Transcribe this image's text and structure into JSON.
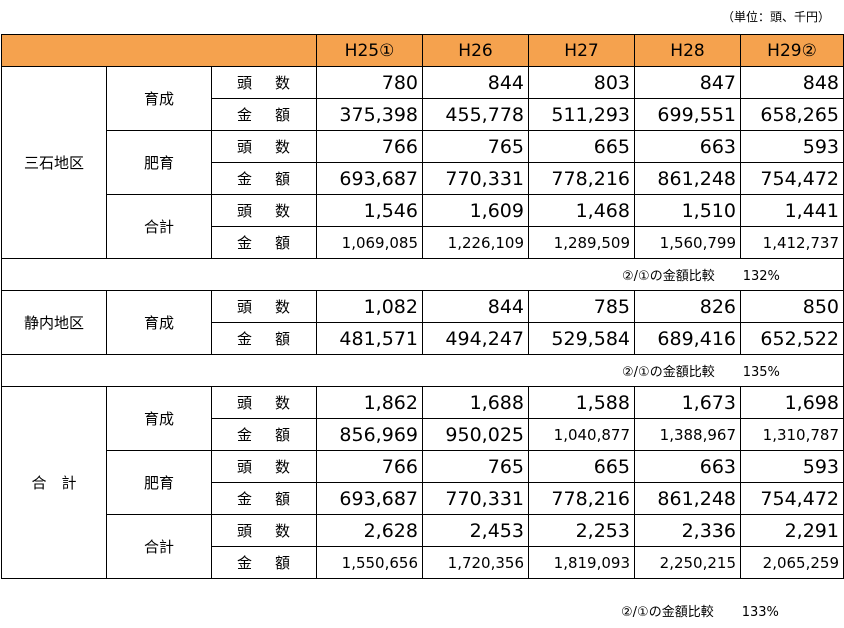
{
  "unit_note": "（単位：頭、千円）",
  "header": [
    "H25①",
    "H26",
    "H27",
    "H28",
    "H29②"
  ],
  "metrics": {
    "head_count_a": "頭",
    "head_count_b": "数",
    "amount_a": "金",
    "amount_b": "額"
  },
  "sections": {
    "mitsuishi": {
      "area": "三石地区",
      "rows": [
        {
          "kind": "育成",
          "count": [
            "780",
            "844",
            "803",
            "847",
            "848"
          ],
          "amount": [
            "375,398",
            "455,778",
            "511,293",
            "699,551",
            "658,265"
          ]
        },
        {
          "kind": "肥育",
          "count": [
            "766",
            "765",
            "665",
            "663",
            "593"
          ],
          "amount": [
            "693,687",
            "770,331",
            "778,216",
            "861,248",
            "754,472"
          ]
        },
        {
          "kind": "合計",
          "count": [
            "1,546",
            "1,609",
            "1,468",
            "1,510",
            "1,441"
          ],
          "amount": [
            "1,069,085",
            "1,226,109",
            "1,289,509",
            "1,560,799",
            "1,412,737"
          ]
        }
      ],
      "comparison": {
        "label": "②/①の金額比較",
        "pct": "132%"
      }
    },
    "shizunai": {
      "area": "静内地区",
      "rows": [
        {
          "kind": "育成",
          "count": [
            "1,082",
            "844",
            "785",
            "826",
            "850"
          ],
          "amount": [
            "481,571",
            "494,247",
            "529,584",
            "689,416",
            "652,522"
          ]
        }
      ],
      "comparison": {
        "label": "②/①の金額比較",
        "pct": "135%"
      }
    },
    "total": {
      "area": "合　計",
      "rows": [
        {
          "kind": "育成",
          "count": [
            "1,862",
            "1,688",
            "1,588",
            "1,673",
            "1,698"
          ],
          "amount": [
            "856,969",
            "950,025",
            "1,040,877",
            "1,388,967",
            "1,310,787"
          ]
        },
        {
          "kind": "肥育",
          "count": [
            "766",
            "765",
            "665",
            "663",
            "593"
          ],
          "amount": [
            "693,687",
            "770,331",
            "778,216",
            "861,248",
            "754,472"
          ]
        },
        {
          "kind": "合計",
          "count": [
            "2,628",
            "2,453",
            "2,253",
            "2,336",
            "2,291"
          ],
          "amount": [
            "1,550,656",
            "1,720,356",
            "1,819,093",
            "2,250,215",
            "2,065,259"
          ]
        }
      ],
      "comparison": {
        "label": "②/①の金額比較",
        "pct": "133%"
      }
    }
  }
}
